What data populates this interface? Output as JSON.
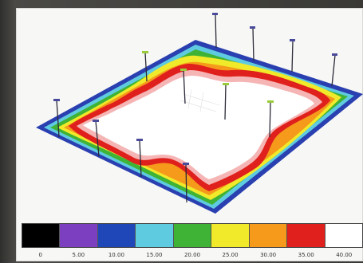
{
  "legend": {
    "colors": [
      "#000000",
      "#7b3fbf",
      "#1f47b8",
      "#5fcbe0",
      "#3fb335",
      "#f0ea2a",
      "#f59a1a",
      "#e0201c",
      "#ffffff"
    ],
    "tick_labels": [
      "0",
      "5.00",
      "10.00",
      "15.00",
      "20.00",
      "25.00",
      "30.00",
      "35.00",
      "40.00"
    ]
  },
  "scene": {
    "floor_colors": {
      "outer": "#2a3fb0",
      "cyan": "#5fcbe0",
      "green": "#3fb335",
      "yellow": "#f0ea2a",
      "orange": "#f59a1a",
      "red": "#e0201c",
      "pink": "#f5b5b5",
      "center": "#ffffff"
    }
  }
}
